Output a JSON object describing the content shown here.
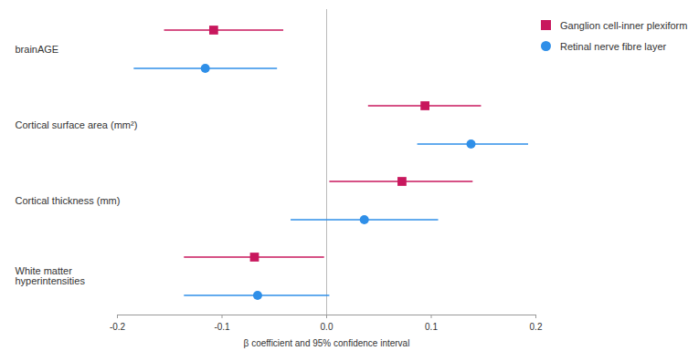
{
  "chart_data": {
    "type": "forest",
    "xlabel": "β coefficient and 95% confidence interval",
    "categories": [
      "brainAGE",
      "Cortical surface area (mm²)",
      "Cortical thickness (mm)",
      "White matter\nhyperintensities"
    ],
    "series": [
      {
        "name": "Ganglion cell-inner plexiform layer",
        "color": "#c8175d",
        "marker": "square",
        "values": [
          -0.108,
          0.094,
          0.072,
          -0.069
        ],
        "ci_lower": [
          -0.155,
          0.04,
          0.003,
          -0.136
        ],
        "ci_upper": [
          -0.041,
          0.148,
          0.14,
          -0.002
        ]
      },
      {
        "name": "Retinal nerve fibre layer",
        "color": "#2f8fe8",
        "marker": "circle",
        "values": [
          -0.116,
          0.138,
          0.036,
          -0.066
        ],
        "ci_lower": [
          -0.184,
          0.087,
          -0.034,
          -0.136
        ],
        "ci_upper": [
          -0.047,
          0.193,
          0.107,
          0.003
        ]
      }
    ],
    "xlim": [
      -0.2,
      0.2
    ],
    "xticks": [
      -0.2,
      -0.1,
      {
        "value": 0,
        "label": "0.0"
      },
      0.1,
      0.2
    ],
    "legend": "top-right",
    "grid": false
  }
}
